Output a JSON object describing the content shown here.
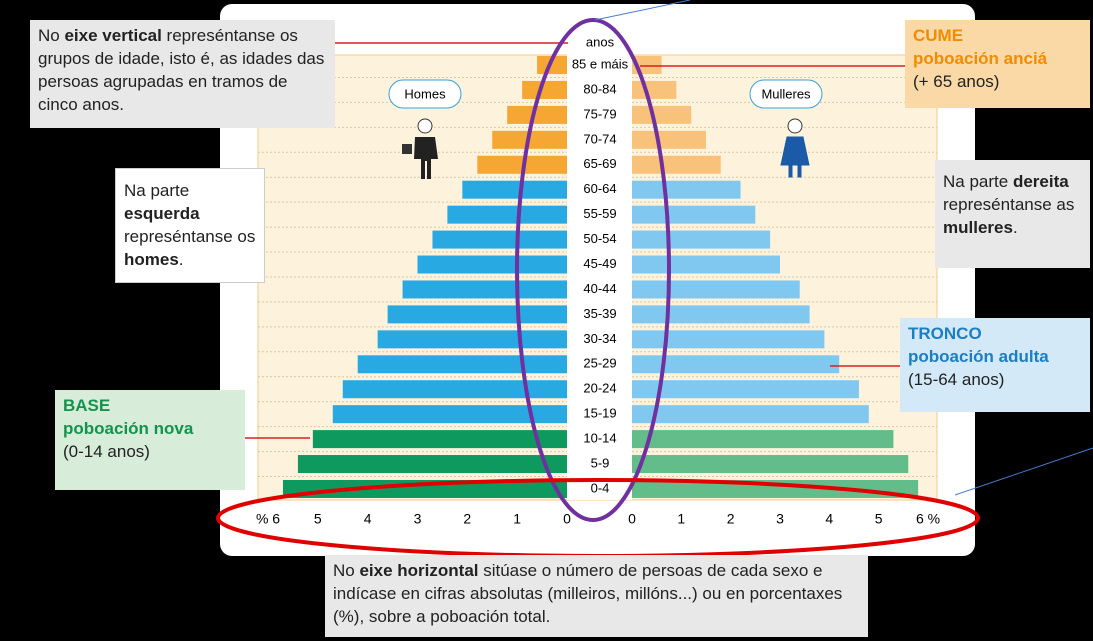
{
  "chart_data": {
    "type": "pyramid",
    "y_label": "anos",
    "categories": [
      "85 e máis",
      "80-84",
      "75-79",
      "70-74",
      "65-69",
      "60-64",
      "55-59",
      "50-54",
      "45-49",
      "40-44",
      "35-39",
      "30-34",
      "25-29",
      "20-24",
      "15-19",
      "10-14",
      "5-9",
      "0-4"
    ],
    "series": [
      {
        "name": "Homes",
        "side": "left",
        "values": [
          0.6,
          0.9,
          1.2,
          1.5,
          1.8,
          2.1,
          2.4,
          2.7,
          3.0,
          3.3,
          3.6,
          3.8,
          4.2,
          4.5,
          4.7,
          5.1,
          5.4,
          5.7
        ],
        "colors": [
          "#f5a633",
          "#f5a633",
          "#f5a633",
          "#f5a633",
          "#f5a633",
          "#29a9e1",
          "#29a9e1",
          "#29a9e1",
          "#29a9e1",
          "#29a9e1",
          "#29a9e1",
          "#29a9e1",
          "#29a9e1",
          "#29a9e1",
          "#29a9e1",
          "#0e9a5e",
          "#0e9a5e",
          "#0e9a5e"
        ]
      },
      {
        "name": "Mulleres",
        "side": "right",
        "values": [
          0.6,
          0.9,
          1.2,
          1.5,
          1.8,
          2.2,
          2.5,
          2.8,
          3.0,
          3.4,
          3.6,
          3.9,
          4.2,
          4.6,
          4.8,
          5.3,
          5.6,
          5.8
        ],
        "colors": [
          "#f9c27a",
          "#f9c27a",
          "#f9c27a",
          "#f9c27a",
          "#f9c27a",
          "#80c8ef",
          "#80c8ef",
          "#80c8ef",
          "#80c8ef",
          "#80c8ef",
          "#80c8ef",
          "#80c8ef",
          "#80c8ef",
          "#80c8ef",
          "#80c8ef",
          "#63bd8a",
          "#63bd8a",
          "#63bd8a"
        ]
      }
    ],
    "xlim": [
      0,
      6
    ],
    "xticks_left": [
      0,
      1,
      2,
      3,
      4,
      5,
      {
        "value": 6,
        "label": "% 6"
      }
    ],
    "xticks_right": [
      0,
      1,
      2,
      3,
      4,
      5,
      {
        "value": 6,
        "label": "6 %"
      }
    ],
    "annotations": [
      {
        "runs": [
          {
            "text": "No "
          },
          {
            "text": "eixe vertical",
            "bold": true
          },
          {
            "text": " represéntanse os grupos de idade, isto é, as idades das persoas agrupadas en tramos de cinco anos."
          }
        ]
      },
      {
        "runs": [
          {
            "text": "Na parte "
          },
          {
            "text": "esquerda",
            "bold": true
          },
          {
            "text": " represéntanse os "
          },
          {
            "text": "homes",
            "bold": true
          },
          {
            "text": "."
          }
        ]
      },
      {
        "runs": [
          {
            "text": "Na parte "
          },
          {
            "text": "dereita",
            "bold": true
          },
          {
            "text": " represéntanse as "
          },
          {
            "text": "mulleres",
            "bold": true
          },
          {
            "text": "."
          }
        ]
      },
      {
        "color": "#f08c00",
        "lines": [
          "CUME",
          "poboación anciá",
          "(+ 65 anos)"
        ]
      },
      {
        "color": "#1b7fc4",
        "lines": [
          "TRONCO",
          "poboación adulta",
          "(15-64 anos)"
        ]
      },
      {
        "color": "#14934f",
        "lines": [
          "BASE",
          "poboación nova",
          "(0-14 anos)"
        ]
      },
      {
        "runs": [
          {
            "text": "No "
          },
          {
            "text": "eixe horizontal",
            "bold": true
          },
          {
            "text": " sitúase o número de persoas de cada sexo e indícase en cifras absolutas (milleiros, millóns...) ou en porcentaxes (%), sobre a poboación total."
          }
        ]
      }
    ]
  }
}
